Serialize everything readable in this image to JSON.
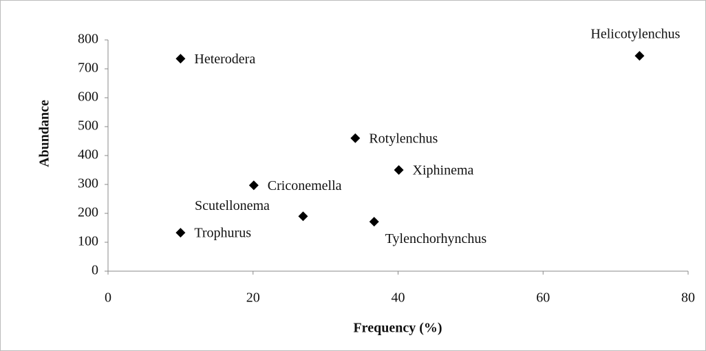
{
  "chart_data": {
    "type": "scatter",
    "x_label": "Frequency (%)",
    "y_label": "Abundance",
    "labels": [
      "Heterodera",
      "Helicotylenchus",
      "Rotylenchus",
      "Xiphinema",
      "Criconemella",
      "Scutellonema",
      "Tylenchorhynchus",
      "Trophurus"
    ],
    "x": [
      10,
      73.3,
      34.1,
      40.1,
      20.1,
      26.9,
      36.7,
      10
    ],
    "values": [
      735,
      745,
      460,
      350,
      297,
      190,
      171,
      133
    ],
    "color": "#000000",
    "xlim": [
      0,
      80
    ],
    "xticks": [
      0,
      20,
      40,
      60,
      80
    ],
    "ylim": [
      0,
      800
    ],
    "yticks": [
      0,
      100,
      200,
      300,
      400,
      500,
      600,
      700,
      800
    ],
    "grid": false
  }
}
